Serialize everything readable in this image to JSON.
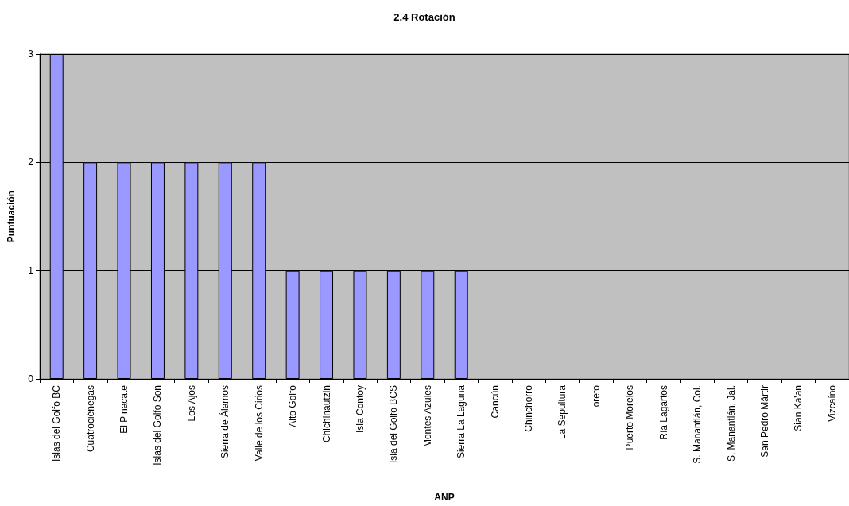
{
  "chart_data": {
    "type": "bar",
    "title": "2.4 Rotación",
    "xlabel": "ANP",
    "ylabel": "Puntuación",
    "categories": [
      "Islas del Golfo BC",
      "Cuatrociénegas",
      "El Pinacate",
      "Islas del Golfo Son",
      "Los Ajos",
      "Sierra de Álamos",
      "Valle de los Cirios",
      "Alto Golfo",
      "Chichinautzin",
      "Isla Contoy",
      "Isla del Golfo BCS",
      "Montes Azules",
      "Sierra La Laguna",
      "Cancún",
      "Chinchorro",
      "La Sepultura",
      "Loreto",
      "Puerto Morelos",
      "Ría Lagartos",
      "S. Manantlán, Col.",
      "S. Manantlán, Jal.",
      "San Pedro Mártir",
      "Sian Ka'an",
      "Vizcaíno"
    ],
    "values": [
      3,
      2,
      2,
      2,
      2,
      2,
      2,
      1,
      1,
      1,
      1,
      1,
      1,
      0,
      0,
      0,
      0,
      0,
      0,
      0,
      0,
      0,
      0,
      0
    ],
    "color": "#9999ff",
    "ylim": [
      0,
      3
    ],
    "yticks": [
      0,
      1,
      2,
      3
    ],
    "grid": "y"
  }
}
